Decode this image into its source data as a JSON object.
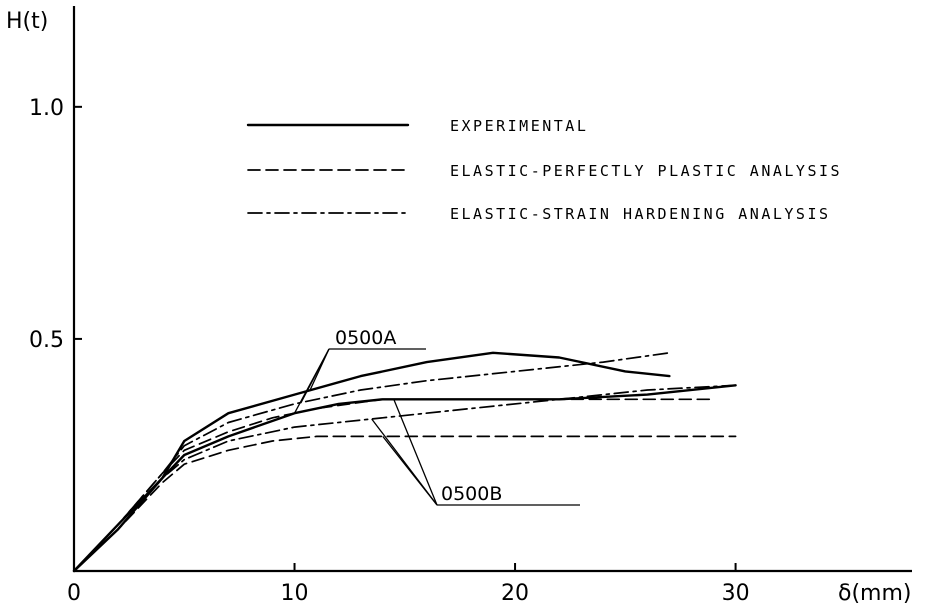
{
  "chart_data": {
    "type": "line",
    "title": "",
    "xlabel": "δ(mm)",
    "ylabel": "H(t)",
    "xlim": [
      0,
      38
    ],
    "ylim": [
      0,
      1.2
    ],
    "x_ticks": [
      {
        "value": 0,
        "label": "0"
      },
      {
        "value": 10,
        "label": "10"
      },
      {
        "value": 20,
        "label": "20"
      },
      {
        "value": 30,
        "label": "30"
      }
    ],
    "y_ticks": [
      {
        "value": 0.5,
        "label": "0.5"
      },
      {
        "value": 1.0,
        "label": "1.0"
      }
    ],
    "grid": false,
    "legend_placement": "top-center",
    "legend": [
      {
        "label": "EXPERIMENTAL",
        "style": "solid"
      },
      {
        "label": "ELASTIC-PERFECTLY PLASTIC ANALYSIS",
        "style": "dashed"
      },
      {
        "label": "ELASTIC-STRAIN HARDENING ANALYSIS",
        "style": "dashdot"
      }
    ],
    "series": [
      {
        "specimen": "0500A",
        "style": "solid",
        "points": [
          [
            0,
            0
          ],
          [
            2,
            0.1
          ],
          [
            4,
            0.2
          ],
          [
            5,
            0.28
          ],
          [
            7,
            0.34
          ],
          [
            10,
            0.38
          ],
          [
            13,
            0.42
          ],
          [
            16,
            0.45
          ],
          [
            19,
            0.47
          ],
          [
            22,
            0.46
          ],
          [
            25,
            0.43
          ],
          [
            27,
            0.42
          ]
        ]
      },
      {
        "specimen": "0500A",
        "style": "dashed",
        "points": [
          [
            0,
            0
          ],
          [
            2,
            0.1
          ],
          [
            4,
            0.21
          ],
          [
            5,
            0.26
          ],
          [
            7,
            0.3
          ],
          [
            9,
            0.33
          ],
          [
            11,
            0.35
          ],
          [
            14,
            0.37
          ],
          [
            18,
            0.37
          ],
          [
            22,
            0.37
          ],
          [
            26,
            0.37
          ],
          [
            29,
            0.37
          ]
        ]
      },
      {
        "specimen": "0500A",
        "style": "dashdot",
        "points": [
          [
            0,
            0
          ],
          [
            2,
            0.1
          ],
          [
            4,
            0.21
          ],
          [
            5,
            0.27
          ],
          [
            7,
            0.32
          ],
          [
            10,
            0.36
          ],
          [
            13,
            0.39
          ],
          [
            16,
            0.41
          ],
          [
            20,
            0.43
          ],
          [
            24,
            0.45
          ],
          [
            27,
            0.47
          ]
        ]
      },
      {
        "specimen": "0500B",
        "style": "solid",
        "points": [
          [
            0,
            0
          ],
          [
            2,
            0.09
          ],
          [
            4,
            0.2
          ],
          [
            5,
            0.25
          ],
          [
            7,
            0.29
          ],
          [
            10,
            0.34
          ],
          [
            12,
            0.36
          ],
          [
            14,
            0.37
          ],
          [
            18,
            0.37
          ],
          [
            22,
            0.37
          ],
          [
            26,
            0.38
          ],
          [
            30,
            0.4
          ]
        ]
      },
      {
        "specimen": "0500B",
        "style": "dashed",
        "points": [
          [
            0,
            0
          ],
          [
            2,
            0.09
          ],
          [
            4,
            0.19
          ],
          [
            5,
            0.23
          ],
          [
            7,
            0.26
          ],
          [
            9,
            0.28
          ],
          [
            11,
            0.29
          ],
          [
            15,
            0.29
          ],
          [
            20,
            0.29
          ],
          [
            25,
            0.29
          ],
          [
            30,
            0.29
          ]
        ]
      },
      {
        "specimen": "0500B",
        "style": "dashdot",
        "points": [
          [
            0,
            0
          ],
          [
            2,
            0.09
          ],
          [
            4,
            0.2
          ],
          [
            5,
            0.24
          ],
          [
            7,
            0.28
          ],
          [
            10,
            0.31
          ],
          [
            14,
            0.33
          ],
          [
            18,
            0.35
          ],
          [
            22,
            0.37
          ],
          [
            26,
            0.39
          ],
          [
            30,
            0.4
          ]
        ]
      }
    ],
    "annotations": [
      {
        "text": "0500A",
        "targets": "upper curve group"
      },
      {
        "text": "0500B",
        "targets": "lower curve group"
      }
    ]
  }
}
